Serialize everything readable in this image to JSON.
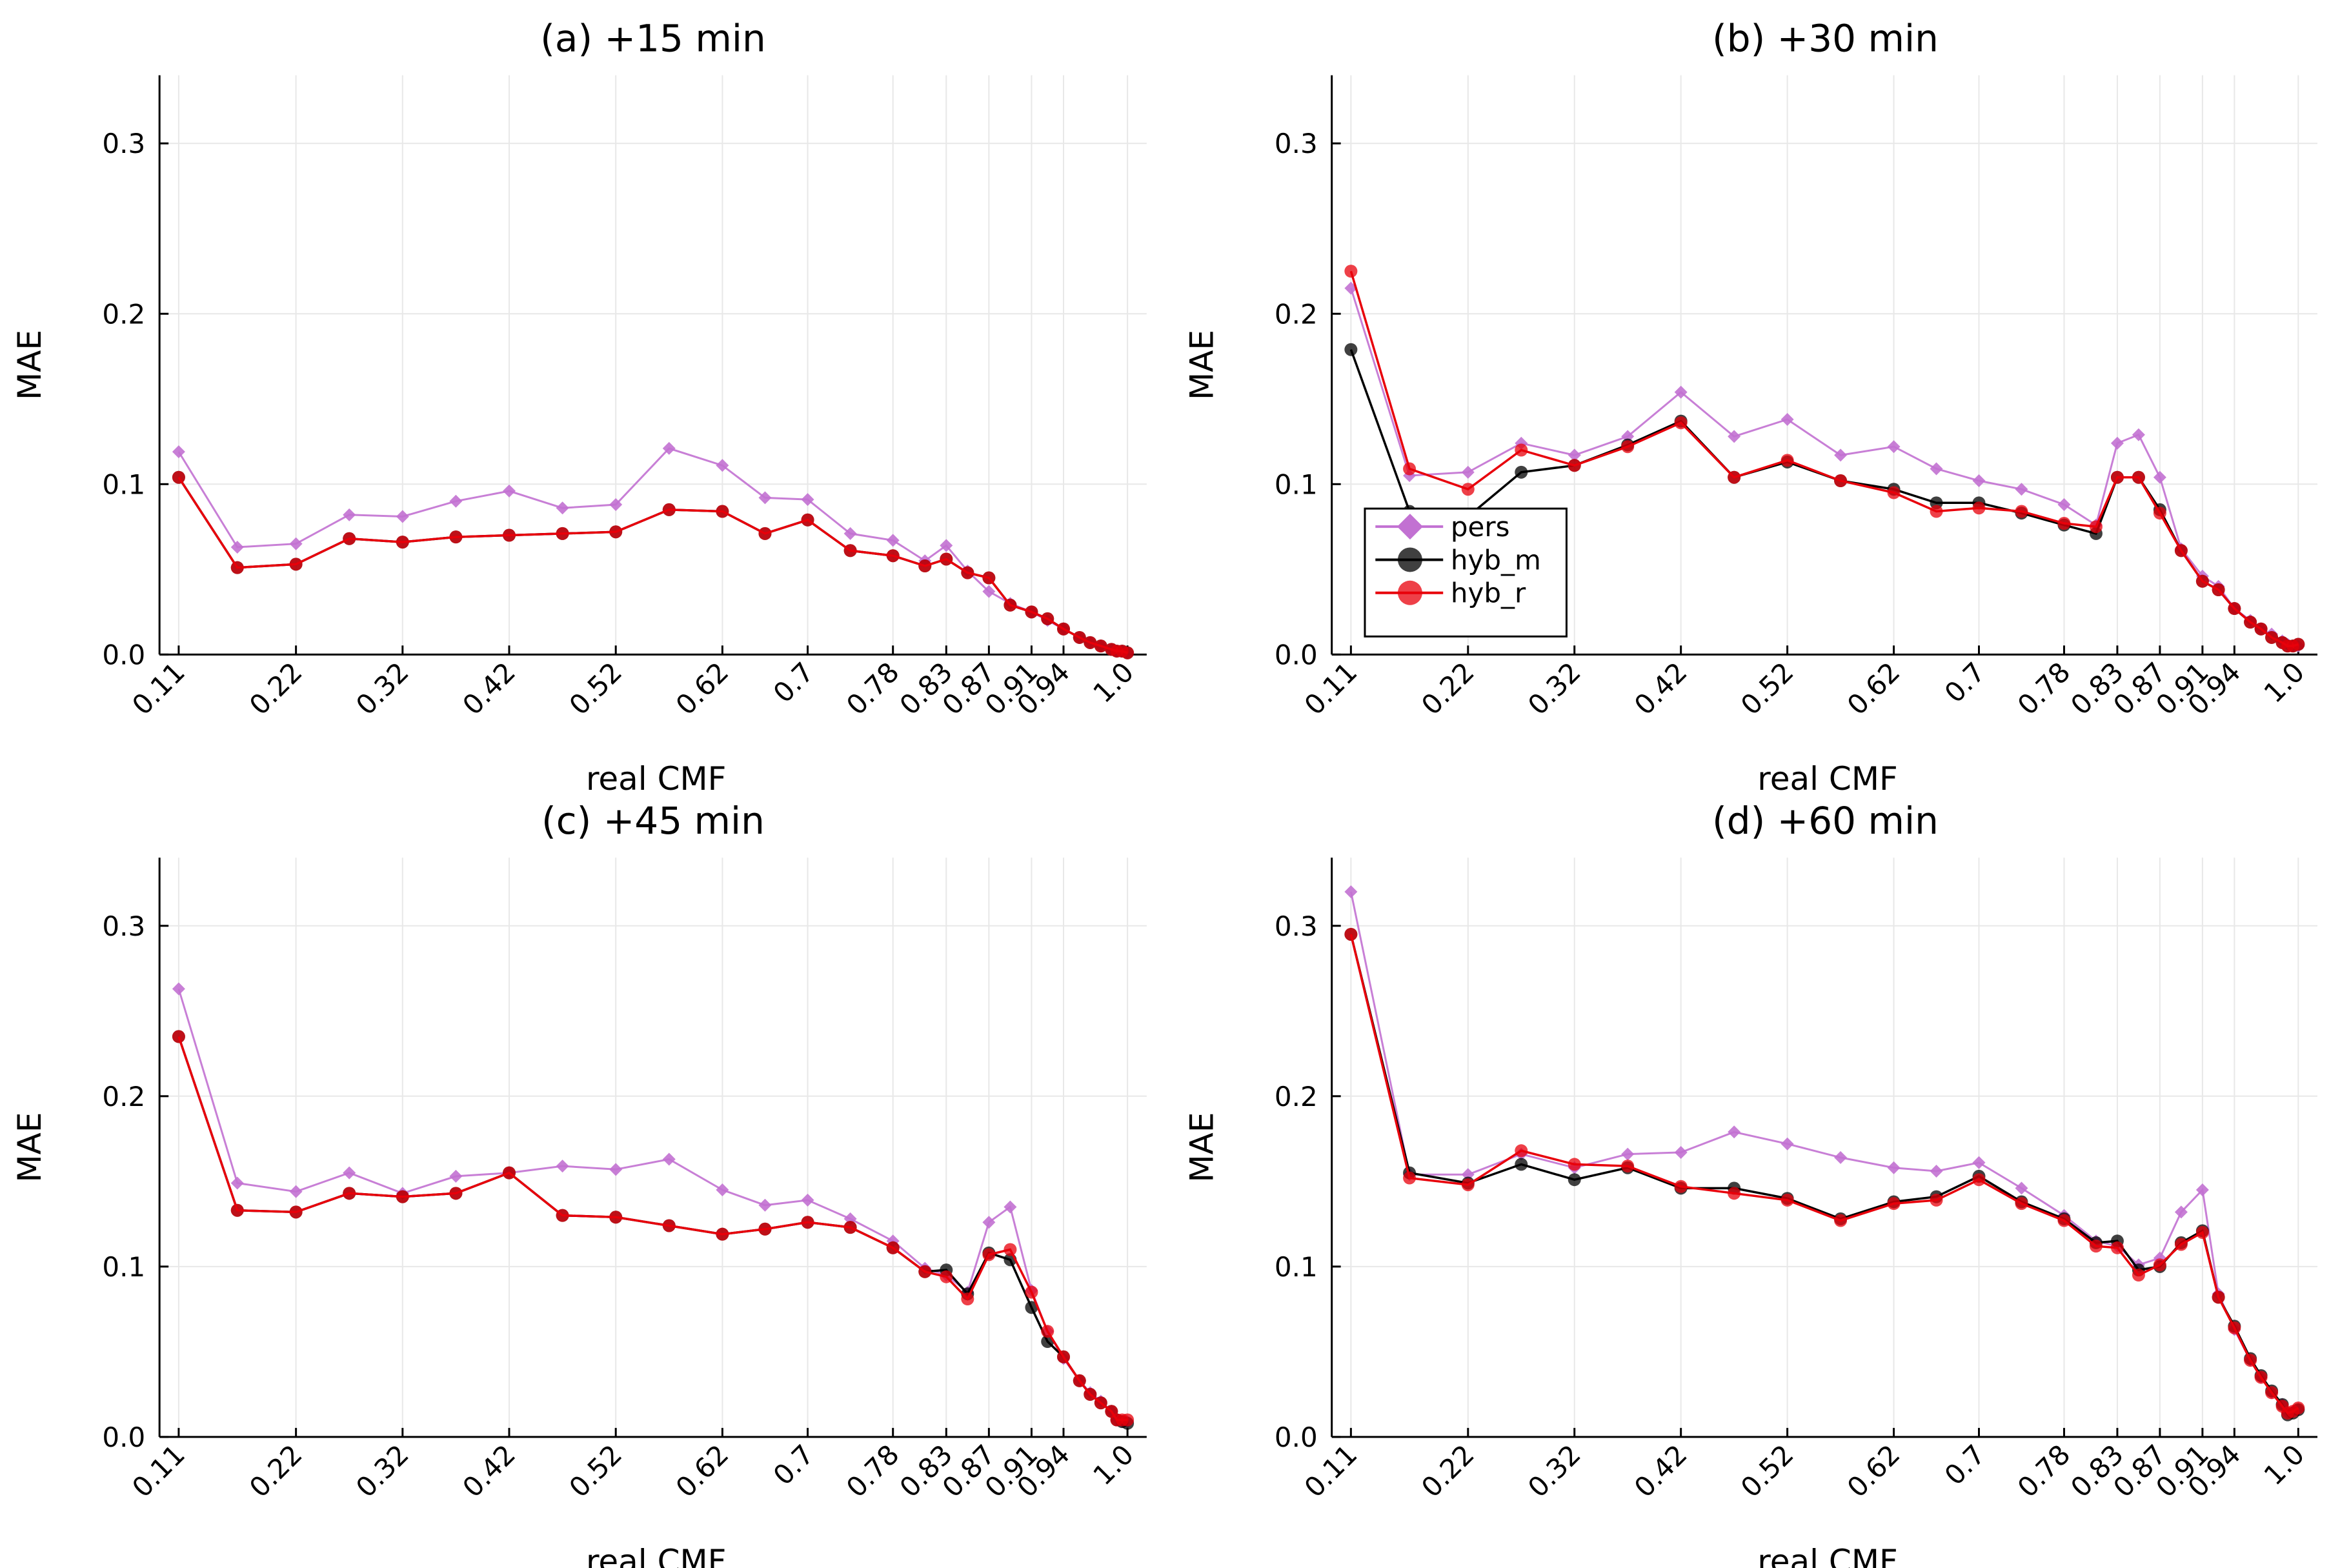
{
  "chart_data": [
    {
      "type": "line",
      "title": "(a) +15 min",
      "xlabel": "real CMF",
      "ylabel": "MAE",
      "ylim": [
        0,
        0.34
      ],
      "yticks": [
        "0.0",
        "0.1",
        "0.2",
        "0.3"
      ],
      "grid": true,
      "x": [
        0.11,
        0.165,
        0.22,
        0.27,
        0.32,
        0.37,
        0.42,
        0.47,
        0.52,
        0.57,
        0.62,
        0.66,
        0.7,
        0.74,
        0.78,
        0.81,
        0.83,
        0.85,
        0.87,
        0.89,
        0.91,
        0.925,
        0.94,
        0.955,
        0.965,
        0.975,
        0.985,
        0.99,
        0.995,
        1.0
      ],
      "xticks": [
        "0.11",
        "0.22",
        "0.32",
        "0.42",
        "0.52",
        "0.62",
        "0.7",
        "0.78",
        "0.83",
        "0.87",
        "0.91",
        "0.94",
        "1.0"
      ],
      "series": [
        {
          "name": "pers",
          "color": "#c271d2",
          "marker": "diamond",
          "values": [
            0.119,
            0.063,
            0.065,
            0.082,
            0.081,
            0.09,
            0.096,
            0.086,
            0.088,
            0.121,
            0.111,
            0.092,
            0.091,
            0.071,
            0.067,
            0.055,
            0.064,
            0.049,
            0.037,
            0.03,
            0.025,
            0.02,
            0.015,
            0.01,
            0.007,
            0.005,
            0.003,
            0.002,
            0.002,
            0.001
          ]
        },
        {
          "name": "hyb_m",
          "color": "#000000",
          "marker": "circle",
          "values": [
            0.104,
            0.051,
            0.053,
            0.068,
            0.066,
            0.069,
            0.07,
            0.071,
            0.072,
            0.085,
            0.084,
            0.071,
            0.079,
            0.061,
            0.058,
            0.052,
            0.056,
            0.048,
            0.045,
            0.029,
            0.025,
            0.021,
            0.015,
            0.01,
            0.007,
            0.005,
            0.003,
            0.002,
            0.002,
            0.001
          ]
        },
        {
          "name": "hyb_r",
          "color": "#e8000b",
          "marker": "circle",
          "values": [
            0.104,
            0.051,
            0.053,
            0.068,
            0.066,
            0.069,
            0.07,
            0.071,
            0.072,
            0.085,
            0.084,
            0.071,
            0.079,
            0.061,
            0.058,
            0.052,
            0.056,
            0.048,
            0.045,
            0.029,
            0.025,
            0.021,
            0.015,
            0.01,
            0.007,
            0.005,
            0.003,
            0.002,
            0.002,
            0.001
          ]
        }
      ]
    },
    {
      "type": "line",
      "title": "(b) +30 min",
      "xlabel": "real CMF",
      "ylabel": "MAE",
      "ylim": [
        0,
        0.34
      ],
      "yticks": [
        "0.0",
        "0.1",
        "0.2",
        "0.3"
      ],
      "grid": true,
      "legend": "bottom-left",
      "x": [
        0.11,
        0.165,
        0.22,
        0.27,
        0.32,
        0.37,
        0.42,
        0.47,
        0.52,
        0.57,
        0.62,
        0.66,
        0.7,
        0.74,
        0.78,
        0.81,
        0.83,
        0.85,
        0.87,
        0.89,
        0.91,
        0.925,
        0.94,
        0.955,
        0.965,
        0.975,
        0.985,
        0.99,
        0.995,
        1.0
      ],
      "xticks": [
        "0.11",
        "0.22",
        "0.32",
        "0.42",
        "0.52",
        "0.62",
        "0.7",
        "0.78",
        "0.83",
        "0.87",
        "0.91",
        "0.94",
        "1.0"
      ],
      "series": [
        {
          "name": "pers",
          "color": "#c271d2",
          "marker": "diamond",
          "values": [
            0.215,
            0.105,
            0.107,
            0.124,
            0.117,
            0.128,
            0.154,
            0.128,
            0.138,
            0.117,
            0.122,
            0.109,
            0.102,
            0.097,
            0.088,
            0.076,
            0.124,
            0.129,
            0.104,
            0.062,
            0.046,
            0.04,
            0.027,
            0.02,
            0.015,
            0.012,
            0.008,
            0.006,
            0.005,
            0.005
          ]
        },
        {
          "name": "hyb_m",
          "color": "#000000",
          "marker": "circle",
          "values": [
            0.179,
            0.084,
            0.081,
            0.107,
            0.111,
            0.123,
            0.137,
            0.104,
            0.113,
            0.102,
            0.097,
            0.089,
            0.089,
            0.083,
            0.076,
            0.071,
            0.104,
            0.104,
            0.085,
            0.061,
            0.043,
            0.038,
            0.027,
            0.019,
            0.015,
            0.01,
            0.007,
            0.005,
            0.005,
            0.006
          ]
        },
        {
          "name": "hyb_r",
          "color": "#e8000b",
          "marker": "circle",
          "values": [
            0.225,
            0.109,
            0.097,
            0.12,
            0.111,
            0.122,
            0.136,
            0.104,
            0.114,
            0.102,
            0.095,
            0.084,
            0.086,
            0.084,
            0.077,
            0.075,
            0.104,
            0.104,
            0.083,
            0.061,
            0.043,
            0.038,
            0.027,
            0.019,
            0.015,
            0.01,
            0.007,
            0.005,
            0.005,
            0.006
          ]
        }
      ]
    },
    {
      "type": "line",
      "title": "(c) +45 min",
      "xlabel": "real CMF",
      "ylabel": "MAE",
      "ylim": [
        0,
        0.34
      ],
      "yticks": [
        "0.0",
        "0.1",
        "0.2",
        "0.3"
      ],
      "grid": true,
      "x": [
        0.11,
        0.165,
        0.22,
        0.27,
        0.32,
        0.37,
        0.42,
        0.47,
        0.52,
        0.57,
        0.62,
        0.66,
        0.7,
        0.74,
        0.78,
        0.81,
        0.83,
        0.85,
        0.87,
        0.89,
        0.91,
        0.925,
        0.94,
        0.955,
        0.965,
        0.975,
        0.985,
        0.99,
        0.995,
        1.0
      ],
      "xticks": [
        "0.11",
        "0.22",
        "0.32",
        "0.42",
        "0.52",
        "0.62",
        "0.7",
        "0.78",
        "0.83",
        "0.87",
        "0.91",
        "0.94",
        "1.0"
      ],
      "series": [
        {
          "name": "pers",
          "color": "#c271d2",
          "marker": "diamond",
          "values": [
            0.263,
            0.149,
            0.144,
            0.155,
            0.143,
            0.153,
            0.155,
            0.159,
            0.157,
            0.163,
            0.145,
            0.136,
            0.139,
            0.128,
            0.115,
            0.099,
            0.095,
            0.085,
            0.126,
            0.135,
            0.086,
            0.062,
            0.046,
            0.033,
            0.026,
            0.021,
            0.015,
            0.01,
            0.009,
            0.009
          ]
        },
        {
          "name": "hyb_m",
          "color": "#000000",
          "marker": "circle",
          "values": [
            0.235,
            0.133,
            0.132,
            0.143,
            0.141,
            0.143,
            0.155,
            0.13,
            0.129,
            0.124,
            0.119,
            0.122,
            0.126,
            0.123,
            0.111,
            0.097,
            0.098,
            0.084,
            0.108,
            0.104,
            0.076,
            0.056,
            0.047,
            0.033,
            0.025,
            0.02,
            0.015,
            0.01,
            0.009,
            0.008
          ]
        },
        {
          "name": "hyb_r",
          "color": "#e8000b",
          "marker": "circle",
          "values": [
            0.235,
            0.133,
            0.132,
            0.143,
            0.141,
            0.143,
            0.155,
            0.13,
            0.129,
            0.124,
            0.119,
            0.122,
            0.126,
            0.123,
            0.111,
            0.097,
            0.094,
            0.081,
            0.107,
            0.11,
            0.085,
            0.062,
            0.047,
            0.033,
            0.025,
            0.02,
            0.015,
            0.01,
            0.01,
            0.01
          ]
        }
      ]
    },
    {
      "type": "line",
      "title": "(d) +60 min",
      "xlabel": "real CMF",
      "ylabel": "MAE",
      "ylim": [
        0,
        0.34
      ],
      "yticks": [
        "0.0",
        "0.1",
        "0.2",
        "0.3"
      ],
      "grid": true,
      "x": [
        0.11,
        0.165,
        0.22,
        0.27,
        0.32,
        0.37,
        0.42,
        0.47,
        0.52,
        0.57,
        0.62,
        0.66,
        0.7,
        0.74,
        0.78,
        0.81,
        0.83,
        0.85,
        0.87,
        0.89,
        0.91,
        0.925,
        0.94,
        0.955,
        0.965,
        0.975,
        0.985,
        0.99,
        0.995,
        1.0
      ],
      "xticks": [
        "0.11",
        "0.22",
        "0.32",
        "0.42",
        "0.52",
        "0.62",
        "0.7",
        "0.78",
        "0.83",
        "0.87",
        "0.91",
        "0.94",
        "1.0"
      ],
      "series": [
        {
          "name": "pers",
          "color": "#c271d2",
          "marker": "diamond",
          "values": [
            0.32,
            0.154,
            0.154,
            0.166,
            0.158,
            0.166,
            0.167,
            0.179,
            0.172,
            0.164,
            0.158,
            0.156,
            0.161,
            0.146,
            0.13,
            0.115,
            0.112,
            0.101,
            0.105,
            0.132,
            0.145,
            0.084,
            0.063,
            0.045,
            0.035,
            0.026,
            0.019,
            0.014,
            0.015,
            0.016
          ]
        },
        {
          "name": "hyb_m",
          "color": "#000000",
          "marker": "circle",
          "values": [
            0.295,
            0.155,
            0.149,
            0.16,
            0.151,
            0.158,
            0.146,
            0.146,
            0.14,
            0.128,
            0.138,
            0.141,
            0.153,
            0.138,
            0.128,
            0.114,
            0.115,
            0.098,
            0.1,
            0.114,
            0.121,
            0.082,
            0.065,
            0.046,
            0.036,
            0.027,
            0.019,
            0.013,
            0.014,
            0.016
          ]
        },
        {
          "name": "hyb_r",
          "color": "#e8000b",
          "marker": "circle",
          "values": [
            0.295,
            0.152,
            0.148,
            0.168,
            0.16,
            0.159,
            0.147,
            0.143,
            0.139,
            0.127,
            0.137,
            0.139,
            0.151,
            0.137,
            0.127,
            0.112,
            0.111,
            0.095,
            0.101,
            0.113,
            0.12,
            0.082,
            0.064,
            0.045,
            0.035,
            0.026,
            0.018,
            0.014,
            0.015,
            0.017
          ]
        }
      ]
    }
  ]
}
